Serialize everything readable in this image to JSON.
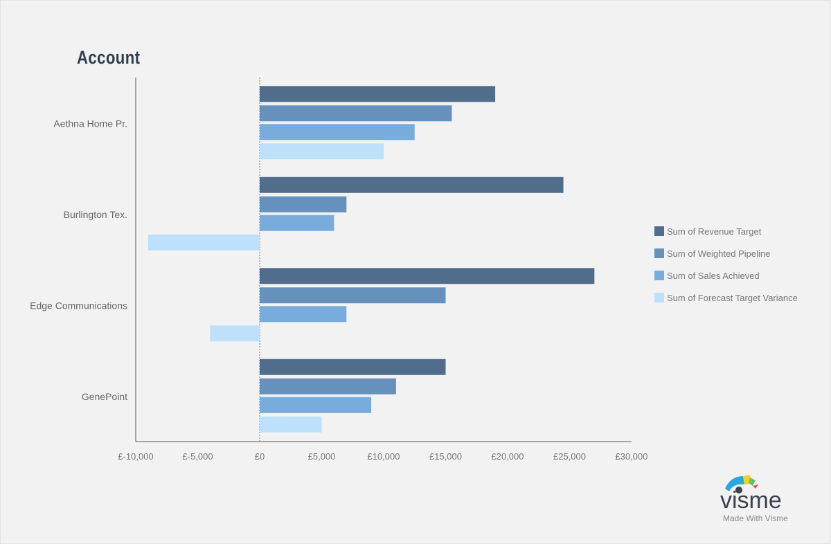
{
  "chart_data": {
    "type": "bar",
    "orientation": "horizontal",
    "title": "Account",
    "categories": [
      "Aethna Home Pr.",
      "Burlington Tex.",
      "Edge Communications",
      "GenePoint"
    ],
    "series": [
      {
        "name": "Sum of Revenue Target",
        "color": "#506d8b",
        "values": [
          19000,
          24500,
          27000,
          15000
        ]
      },
      {
        "name": "Sum of Weighted Pipeline",
        "color": "#6591bc",
        "values": [
          15500,
          7000,
          15000,
          11000
        ]
      },
      {
        "name": "Sum of Sales Achieved",
        "color": "#77acdd",
        "values": [
          12500,
          6000,
          7000,
          9000
        ]
      },
      {
        "name": "Sum of Forecast Target Variance",
        "color": "#bde0fb",
        "values": [
          10000,
          -9000,
          -4000,
          5000
        ]
      }
    ],
    "xlim": [
      -10000,
      30000
    ],
    "xticks": [
      -10000,
      -5000,
      0,
      5000,
      10000,
      15000,
      20000,
      25000,
      30000
    ],
    "xtick_labels": [
      "£-10,000",
      "£-5,000",
      "£0",
      "£5,000",
      "£10,000",
      "£15,000",
      "£20,000",
      "£25,000",
      "£30,000"
    ],
    "grid": false,
    "legend_position": "right"
  },
  "branding": {
    "logo_text": "visme",
    "tagline": "Made With Visme"
  }
}
